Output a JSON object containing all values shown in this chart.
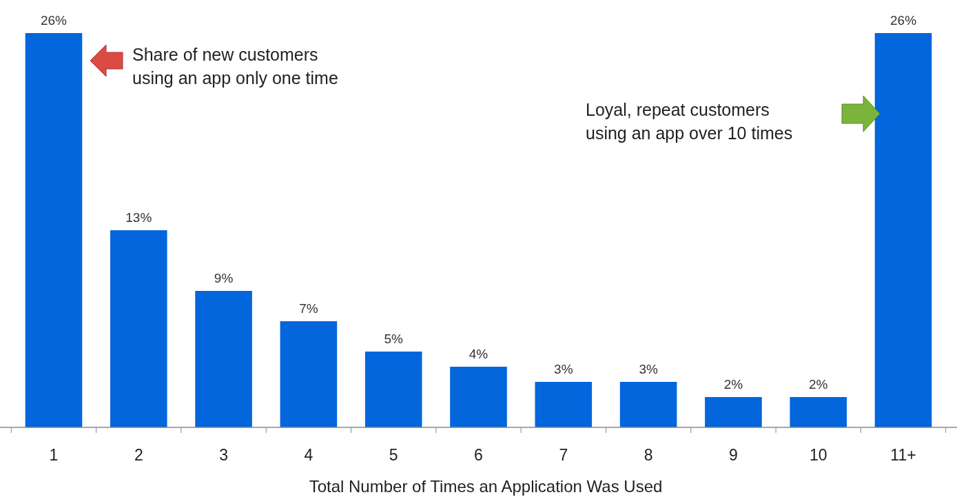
{
  "chart_data": {
    "type": "bar",
    "xlabel": "Total Number of Times an Application Was Used",
    "categories": [
      "1",
      "2",
      "3",
      "4",
      "5",
      "6",
      "7",
      "8",
      "9",
      "10",
      "11+"
    ],
    "values": [
      26,
      13,
      9,
      7,
      5,
      4,
      3,
      3,
      2,
      2,
      26
    ],
    "value_labels": [
      "26%",
      "13%",
      "9%",
      "7%",
      "5%",
      "4%",
      "3%",
      "3%",
      "2%",
      "2%",
      "26%"
    ],
    "color": "#0366dc",
    "annotations": [
      "Share of new customers\nusing an app only one time",
      "Loyal, repeat customers\nusing an app over 10 times"
    ]
  }
}
